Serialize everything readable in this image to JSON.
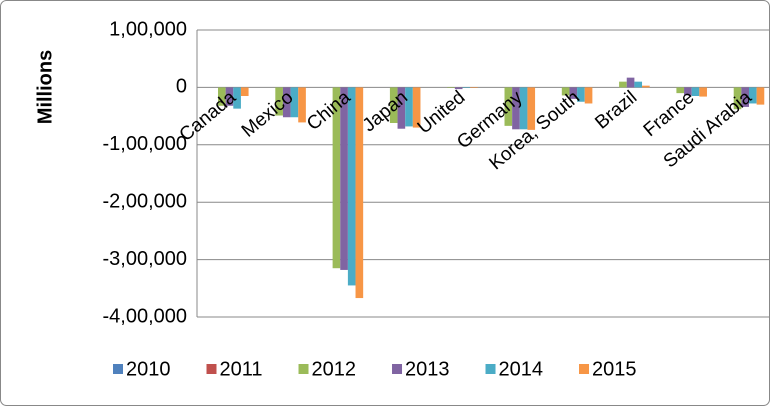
{
  "chart_data": {
    "type": "bar",
    "y_label": "Millions",
    "categories": [
      "Canada",
      "Mexico",
      "China",
      "Japan",
      "United",
      "Germany",
      "Korea, South",
      "Brazil",
      "France",
      "Saudi Arabia"
    ],
    "series": [
      {
        "name": "2010",
        "color": "#4f81bd",
        "values": [
          null,
          null,
          null,
          null,
          null,
          null,
          null,
          null,
          null,
          null
        ]
      },
      {
        "name": "2011",
        "color": "#c0504d",
        "values": [
          null,
          null,
          null,
          null,
          null,
          null,
          null,
          null,
          null,
          null
        ]
      },
      {
        "name": "2012",
        "color": "#9bbb59",
        "values": [
          -32000,
          -49000,
          -315000,
          -62000,
          -1000,
          -67000,
          -14000,
          10000,
          -10000,
          -38000
        ]
      },
      {
        "name": "2013",
        "color": "#8064a2",
        "values": [
          -32000,
          -52000,
          -318000,
          -72000,
          -3000,
          -73000,
          -20000,
          17000,
          -14000,
          -34000
        ]
      },
      {
        "name": "2014",
        "color": "#4bacc6",
        "values": [
          -37000,
          -52000,
          -345000,
          -68000,
          -1000,
          -73000,
          -25000,
          10000,
          -15000,
          -28000
        ]
      },
      {
        "name": "2015",
        "color": "#f79646",
        "values": [
          -15000,
          -61000,
          -367000,
          -70000,
          -1000,
          -74000,
          -28000,
          3000,
          -16000,
          -30000
        ]
      }
    ],
    "ylim": [
      -400000,
      100000
    ],
    "yticks": [
      {
        "value": -400000,
        "label": "-4,00,000"
      },
      {
        "value": -300000,
        "label": "-3,00,000"
      },
      {
        "value": -200000,
        "label": "-2,00,000"
      },
      {
        "value": -100000,
        "label": "-1,00,000"
      },
      0,
      {
        "value": 100000,
        "label": "1,00,000"
      }
    ],
    "grid": true,
    "legend": "bottom"
  }
}
